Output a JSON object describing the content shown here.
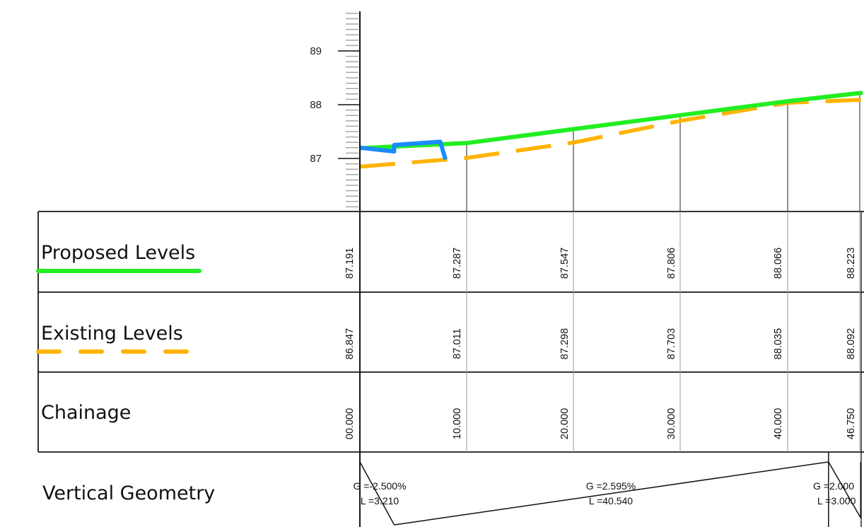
{
  "chart_data": {
    "type": "line",
    "title": "",
    "xlabel": "",
    "ylabel": "",
    "ylim": [
      86.1,
      89.75
    ],
    "y_ticks": [
      87,
      88,
      89
    ],
    "y_tick_labels": [
      "87",
      "88",
      "89"
    ],
    "grid": false,
    "legend": "table-left",
    "series": [
      {
        "name": "Proposed Levels",
        "color": "#22ee22",
        "style": "solid",
        "x": [
          0,
          10,
          20,
          30,
          40,
          46.75
        ],
        "y": [
          87.191,
          87.287,
          87.547,
          87.806,
          88.066,
          88.223
        ]
      },
      {
        "name": "Existing Levels",
        "color": "#ffb300",
        "style": "dashed",
        "x": [
          0,
          10,
          20,
          30,
          40,
          46.75
        ],
        "y": [
          86.847,
          87.011,
          87.298,
          87.703,
          88.035,
          88.092
        ]
      },
      {
        "name": "",
        "color": "#1a8cff",
        "style": "solid",
        "x": [
          0,
          3.2,
          3.2,
          7.5,
          8.0
        ],
        "y": [
          87.2,
          87.13,
          87.25,
          87.31,
          86.98
        ]
      }
    ],
    "table": {
      "rows": [
        {
          "label": "Proposed Levels",
          "values": [
            "87.191",
            "87.287",
            "87.547",
            "87.806",
            "88.066",
            "88.223"
          ]
        },
        {
          "label": "Existing Levels",
          "values": [
            "86.847",
            "87.011",
            "87.298",
            "87.703",
            "88.035",
            "88.092"
          ]
        },
        {
          "label": "Chainage",
          "values": [
            "00.000",
            "10.000",
            "20.000",
            "30.000",
            "40.000",
            "46.750"
          ]
        },
        {
          "label": "Vertical Geometry",
          "values": []
        }
      ],
      "legend_swatches": [
        {
          "row": "Proposed Levels",
          "color": "#22ee22",
          "style": "solid"
        },
        {
          "row": "Existing Levels",
          "color": "#ffb300",
          "style": "dashed"
        }
      ]
    },
    "vertical_geometry": [
      {
        "start": 0,
        "length": 3.21,
        "grade_text": "G =-2.500%",
        "length_text": "L =3.210"
      },
      {
        "start": 3.21,
        "length": 40.54,
        "grade_text": "G =2.595%",
        "length_text": "L =40.540"
      },
      {
        "start": 43.75,
        "length": 3.0,
        "grade_text": "G =2.000",
        "length_text": "L =3.000"
      }
    ]
  }
}
